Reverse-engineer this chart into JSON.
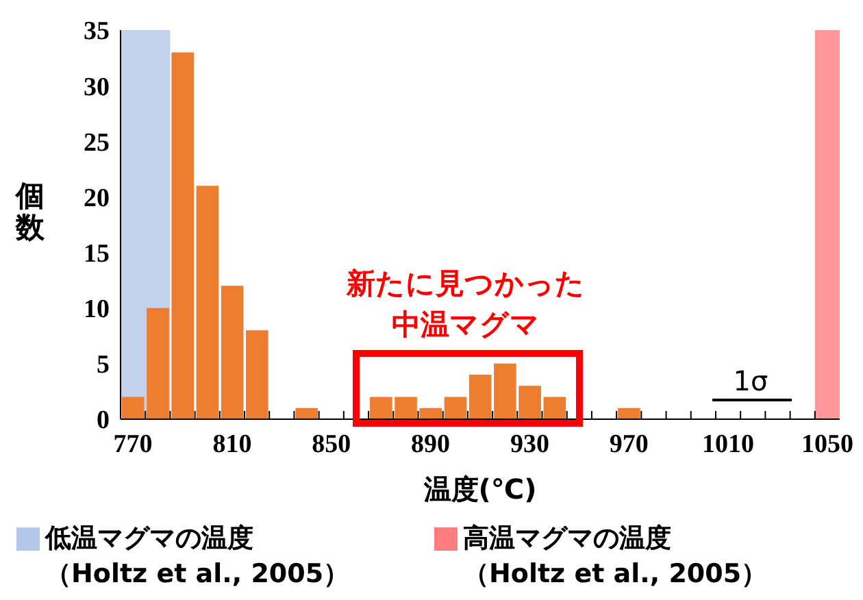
{
  "chart_data": {
    "type": "histogram",
    "xlabel": "温度(℃)",
    "ylabel": "個数",
    "bins": [
      765,
      775,
      785,
      795,
      805,
      815,
      825,
      835,
      845,
      855,
      865,
      875,
      885,
      895,
      905,
      915,
      925,
      935,
      945,
      955,
      965,
      975,
      985,
      995,
      1005,
      1015,
      1025,
      1035,
      1045,
      1055
    ],
    "values": [
      2,
      10,
      33,
      21,
      12,
      8,
      0,
      1,
      0,
      0,
      2,
      2,
      1,
      2,
      4,
      5,
      3,
      2,
      0,
      0,
      1,
      0,
      0,
      0,
      0,
      0,
      0,
      0,
      0
    ],
    "color": "#ed7d31",
    "xlim": [
      765,
      1055
    ],
    "xticks": [
      770,
      {
        "value": 775,
        "label": null
      },
      {
        "value": 785,
        "label": null
      },
      {
        "value": 795,
        "label": null
      },
      {
        "value": 805,
        "label": null
      },
      810,
      {
        "value": 815,
        "label": null
      },
      {
        "value": 825,
        "label": null
      },
      {
        "value": 835,
        "label": null
      },
      {
        "value": 845,
        "label": null
      },
      850,
      {
        "value": 855,
        "label": null
      },
      {
        "value": 865,
        "label": null
      },
      {
        "value": 875,
        "label": null
      },
      {
        "value": 885,
        "label": null
      },
      890,
      {
        "value": 895,
        "label": null
      },
      {
        "value": 905,
        "label": null
      },
      {
        "value": 915,
        "label": null
      },
      {
        "value": 925,
        "label": null
      },
      930,
      {
        "value": 935,
        "label": null
      },
      {
        "value": 945,
        "label": null
      },
      {
        "value": 955,
        "label": null
      },
      {
        "value": 965,
        "label": null
      },
      970,
      {
        "value": 975,
        "label": null
      },
      {
        "value": 985,
        "label": null
      },
      {
        "value": 995,
        "label": null
      },
      {
        "value": 1005,
        "label": null
      },
      1010,
      {
        "value": 1015,
        "label": null
      },
      {
        "value": 1025,
        "label": null
      },
      {
        "value": 1035,
        "label": null
      },
      {
        "value": 1045,
        "label": null
      },
      1050
    ],
    "ylim": [
      0,
      35
    ],
    "yticks": [
      0,
      5,
      10,
      15,
      20,
      25,
      30,
      35
    ],
    "grid": false,
    "legend": "bottom",
    "bands": [
      {
        "axis": "x",
        "from": 765,
        "to": 785,
        "label": "低温マグマの温度（Holtz et al., 2005）",
        "color": "#b4c7e7"
      },
      {
        "axis": "x",
        "from": 1045,
        "to": 1055,
        "label": "高温マグマの温度（Holtz et al., 2005）",
        "color": "#ff7c80"
      }
    ],
    "annotations": [
      "新たに見つかった中温マグマ",
      "1σ"
    ]
  }
}
